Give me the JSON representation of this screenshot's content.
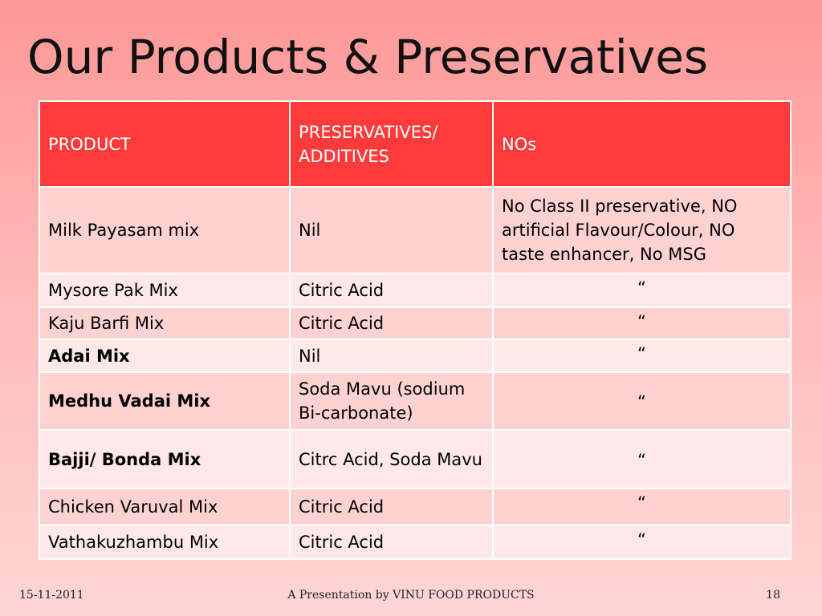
{
  "title": "Our Products & Preservatives",
  "table": {
    "headers": [
      "PRODUCT",
      "PRESERVATIVES/ ADDITIVES",
      "NOs"
    ],
    "rows": [
      {
        "product": "Milk Payasam mix",
        "preservative": "Nil",
        "nos": "No Class II preservative, NO artificial Flavour/Colour, NO taste enhancer, No MSG"
      },
      {
        "product": "Mysore Pak Mix",
        "preservative": "Citric Acid",
        "nos": "“"
      },
      {
        "product": "Kaju Barfi Mix",
        "preservative": "Citric Acid",
        "nos": "“"
      },
      {
        "product": "Adai Mix",
        "preservative": "Nil",
        "nos": "“"
      },
      {
        "product": "Medhu Vadai  Mix",
        "preservative": "Soda Mavu (sodium Bi-carbonate)",
        "nos": "“"
      },
      {
        "product": "Bajji/ Bonda Mix",
        "preservative": "Citrc Acid, Soda Mavu",
        "nos": "“"
      },
      {
        "product": "Chicken Varuval Mix",
        "preservative": "Citric Acid",
        "nos": "“"
      },
      {
        "product": "Vathakuzhambu Mix",
        "preservative": "Citric Acid",
        "nos": "“"
      }
    ]
  },
  "footer": {
    "date": "15-11-2011",
    "presenter": "A Presentation by VINU FOOD PRODUCTS",
    "page_number": "18"
  }
}
